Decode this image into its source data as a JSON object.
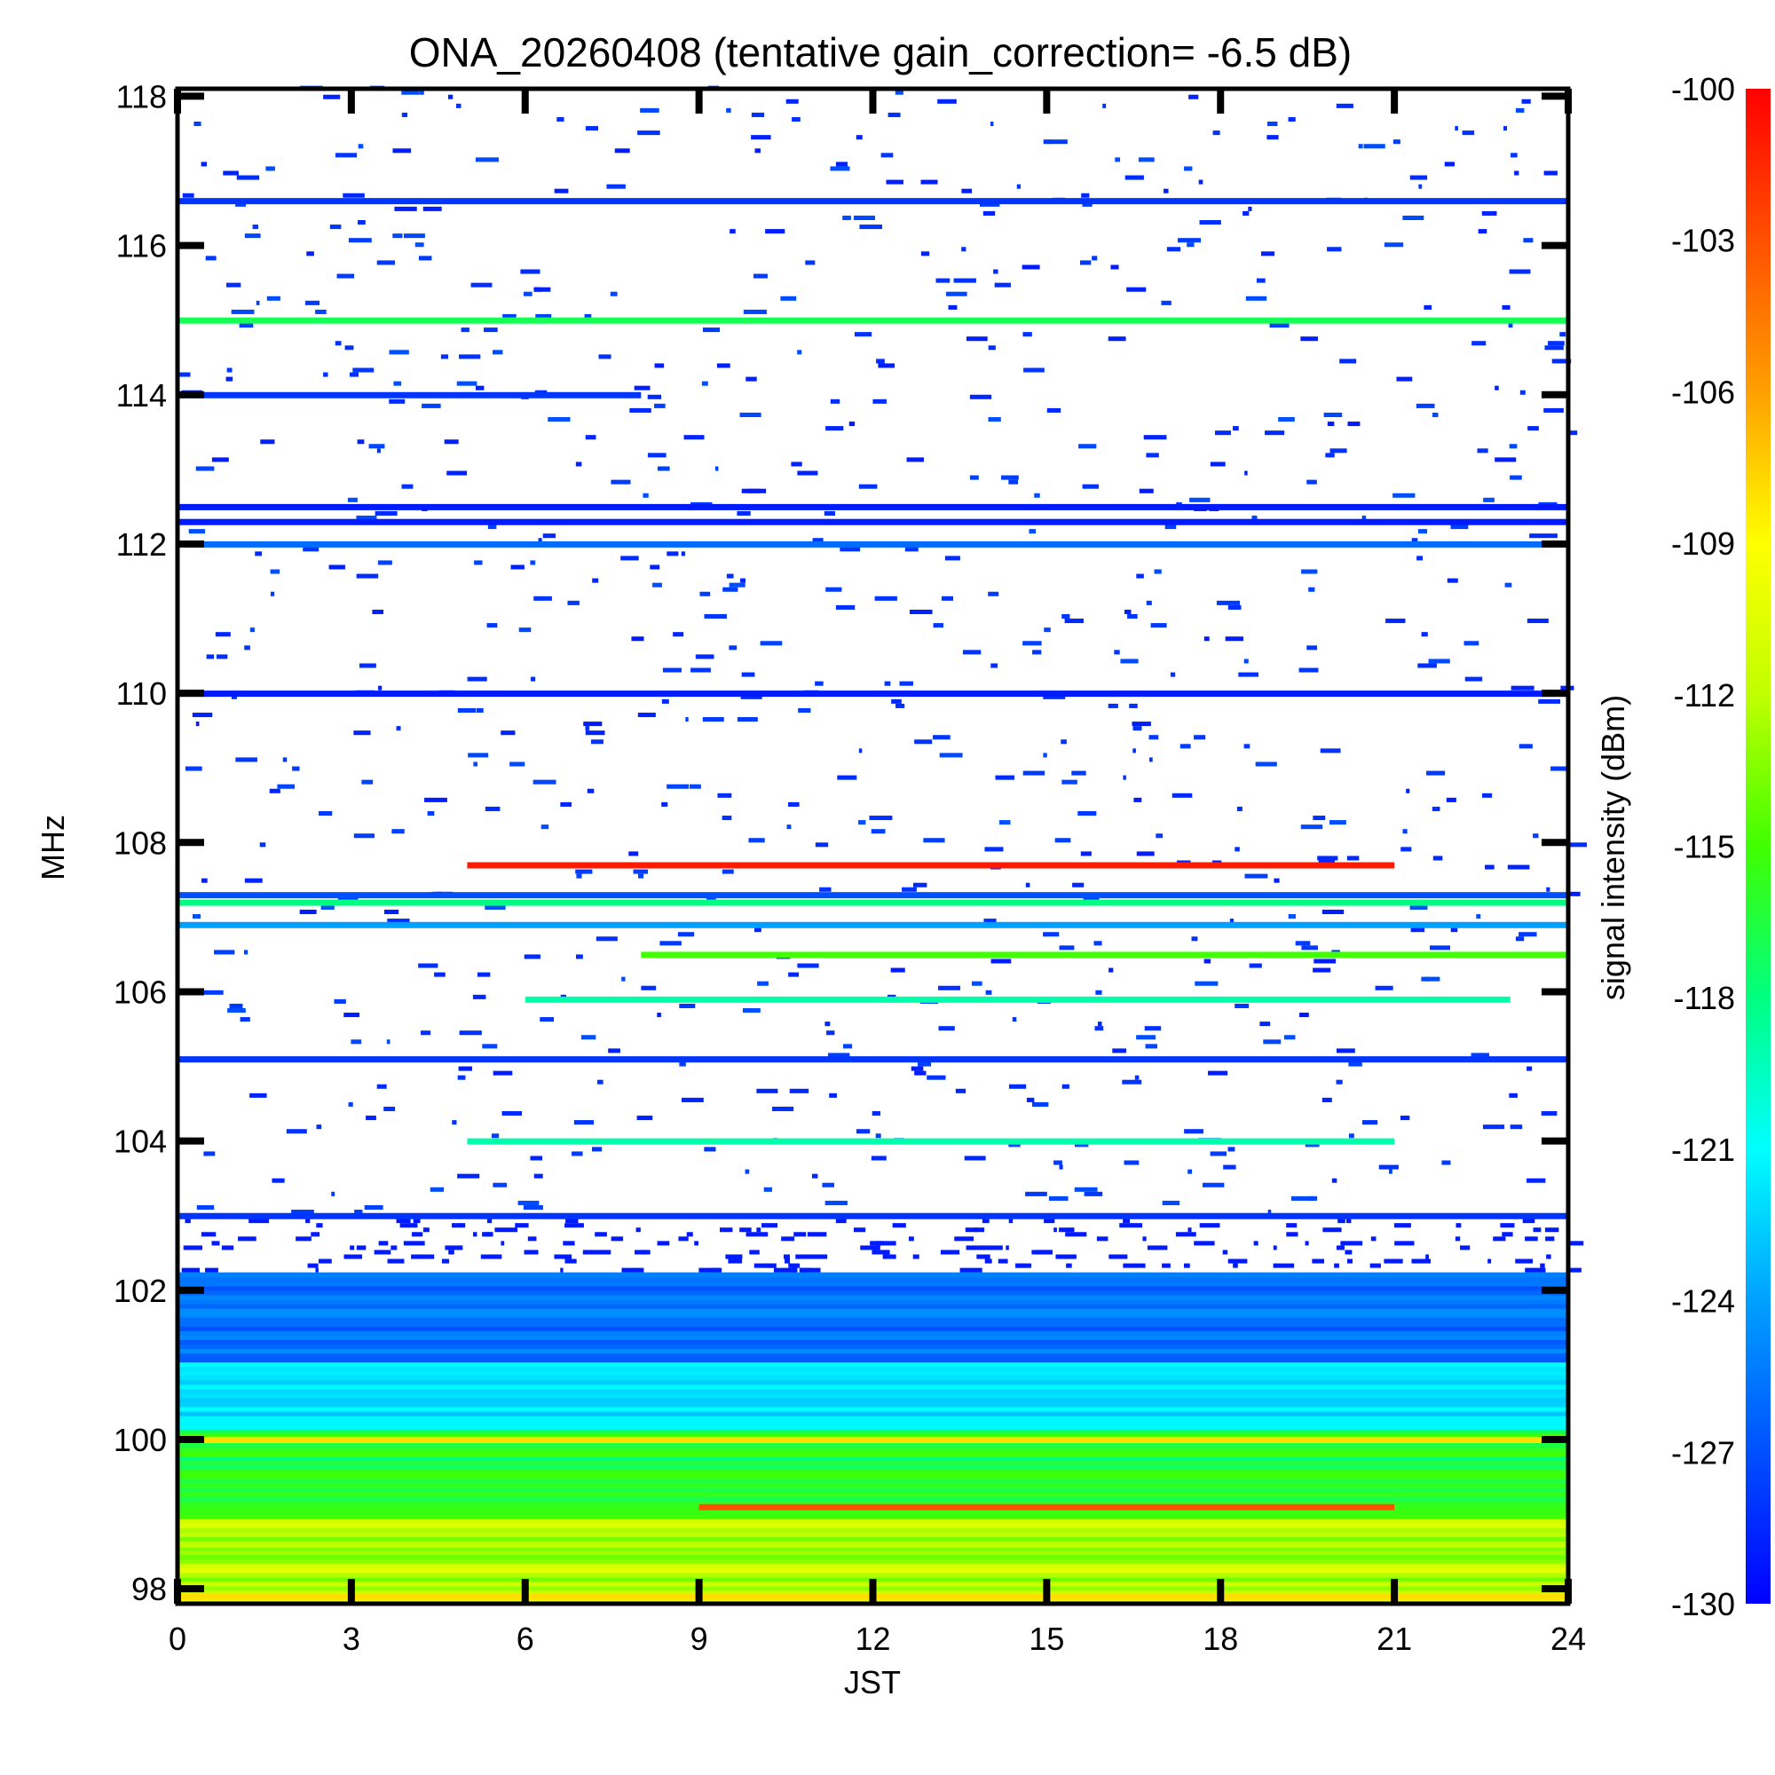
{
  "chart_data": {
    "type": "heatmap",
    "title": "ONA_20260408 (tentative gain_correction= -6.5 dB)",
    "xlabel": "JST",
    "ylabel": "MHz",
    "colorbar_label": "signal intensity (dBm)",
    "xlim": [
      0,
      24
    ],
    "ylim": [
      97.8,
      118.1
    ],
    "x_ticks": [
      "0",
      "3",
      "6",
      "9",
      "12",
      "15",
      "18",
      "21",
      "24"
    ],
    "y_ticks": [
      "98",
      "100",
      "102",
      "104",
      "106",
      "108",
      "110",
      "112",
      "114",
      "116",
      "118"
    ],
    "colorbar_range": [
      -130,
      -100
    ],
    "colorbar_ticks": [
      "-100",
      "-103",
      "-106",
      "-109",
      "-112",
      "-115",
      "-118",
      "-121",
      "-124",
      "-127",
      "-130"
    ],
    "colormap": [
      "#0000ff",
      "#0050ff",
      "#00a0ff",
      "#00ffff",
      "#00ff80",
      "#40ff00",
      "#c0ff00",
      "#ffff00",
      "#ffa000",
      "#ff5000",
      "#ff0000"
    ],
    "persistent_signals": [
      {
        "freq_mhz": 97.9,
        "from_jst": 0,
        "to_jst": 24,
        "level_dbm": -108
      },
      {
        "freq_mhz": 98.6,
        "from_jst": 0,
        "to_jst": 24,
        "level_dbm": -112
      },
      {
        "freq_mhz": 99.1,
        "from_jst": 9,
        "to_jst": 21,
        "level_dbm": -103
      },
      {
        "freq_mhz": 100.0,
        "from_jst": 0,
        "to_jst": 24,
        "level_dbm": -108
      },
      {
        "freq_mhz": 103.0,
        "from_jst": 0,
        "to_jst": 24,
        "level_dbm": -128
      },
      {
        "freq_mhz": 104.0,
        "from_jst": 5,
        "to_jst": 21,
        "level_dbm": -119
      },
      {
        "freq_mhz": 105.1,
        "from_jst": 0,
        "to_jst": 24,
        "level_dbm": -128
      },
      {
        "freq_mhz": 105.9,
        "from_jst": 6,
        "to_jst": 23,
        "level_dbm": -119
      },
      {
        "freq_mhz": 106.5,
        "from_jst": 8,
        "to_jst": 24,
        "level_dbm": -115
      },
      {
        "freq_mhz": 106.9,
        "from_jst": 0,
        "to_jst": 24,
        "level_dbm": -124
      },
      {
        "freq_mhz": 107.2,
        "from_jst": 0,
        "to_jst": 24,
        "level_dbm": -118
      },
      {
        "freq_mhz": 107.3,
        "from_jst": 0,
        "to_jst": 24,
        "level_dbm": -127
      },
      {
        "freq_mhz": 107.7,
        "from_jst": 5,
        "to_jst": 21,
        "level_dbm": -101
      },
      {
        "freq_mhz": 110.0,
        "from_jst": 0,
        "to_jst": 24,
        "level_dbm": -129
      },
      {
        "freq_mhz": 112.0,
        "from_jst": 0,
        "to_jst": 24,
        "level_dbm": -126
      },
      {
        "freq_mhz": 112.3,
        "from_jst": 0,
        "to_jst": 24,
        "level_dbm": -129
      },
      {
        "freq_mhz": 112.5,
        "from_jst": 0,
        "to_jst": 24,
        "level_dbm": -129
      },
      {
        "freq_mhz": 114.0,
        "from_jst": 0,
        "to_jst": 8,
        "level_dbm": -128
      },
      {
        "freq_mhz": 115.0,
        "from_jst": 0,
        "to_jst": 24,
        "level_dbm": -117
      },
      {
        "freq_mhz": 116.6,
        "from_jst": 0,
        "to_jst": 24,
        "level_dbm": -128
      }
    ]
  }
}
